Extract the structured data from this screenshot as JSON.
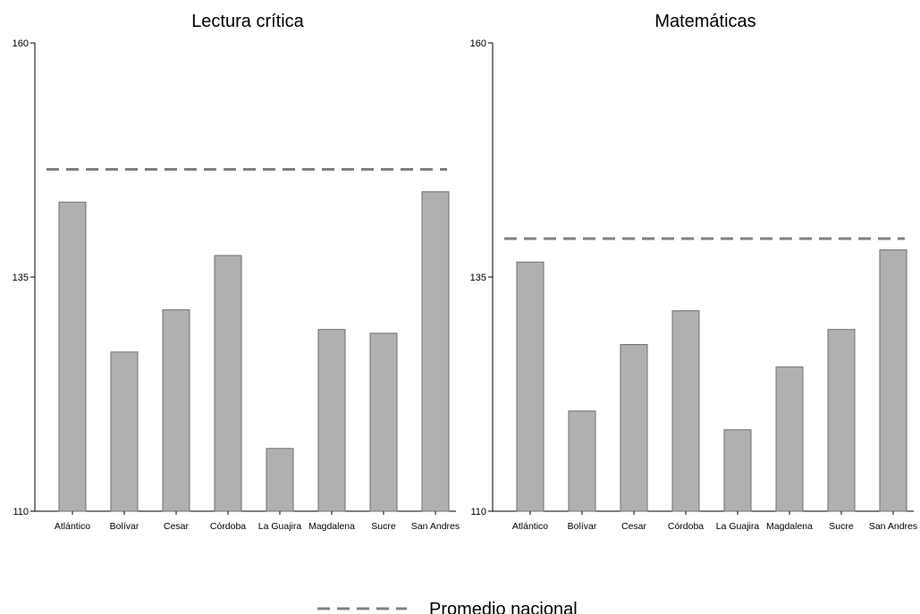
{
  "chart_data": [
    {
      "type": "bar",
      "title": "Lectura crítica",
      "categories": [
        "Atlántico",
        "Bolívar",
        "Cesar",
        "Córdoba",
        "La Guajira",
        "Magdalena",
        "Sucre",
        "San Andres"
      ],
      "values": [
        143.0,
        127.0,
        131.5,
        137.3,
        116.7,
        129.4,
        129.0,
        144.1
      ],
      "reference_line": {
        "name": "Promedio nacional",
        "value": 146.5
      },
      "ylim": [
        110,
        160
      ],
      "yticks": [
        110,
        135,
        160
      ],
      "bar_color": "#b0b0b0",
      "line_color": "#808080"
    },
    {
      "type": "bar",
      "title": "Matemáticas",
      "categories": [
        "Atlántico",
        "Bolívar",
        "Cesar",
        "Córdoba",
        "La Guajira",
        "Magdalena",
        "Sucre",
        "San Andres"
      ],
      "values": [
        136.6,
        120.7,
        127.8,
        131.4,
        118.7,
        125.4,
        129.4,
        137.9
      ],
      "reference_line": {
        "name": "Promedio nacional",
        "value": 139.1
      },
      "ylim": [
        110,
        160
      ],
      "yticks": [
        110,
        135,
        160
      ],
      "bar_color": "#b0b0b0",
      "line_color": "#808080"
    }
  ],
  "legend": {
    "label": "Promedio nacional",
    "position": "bottom-center"
  }
}
